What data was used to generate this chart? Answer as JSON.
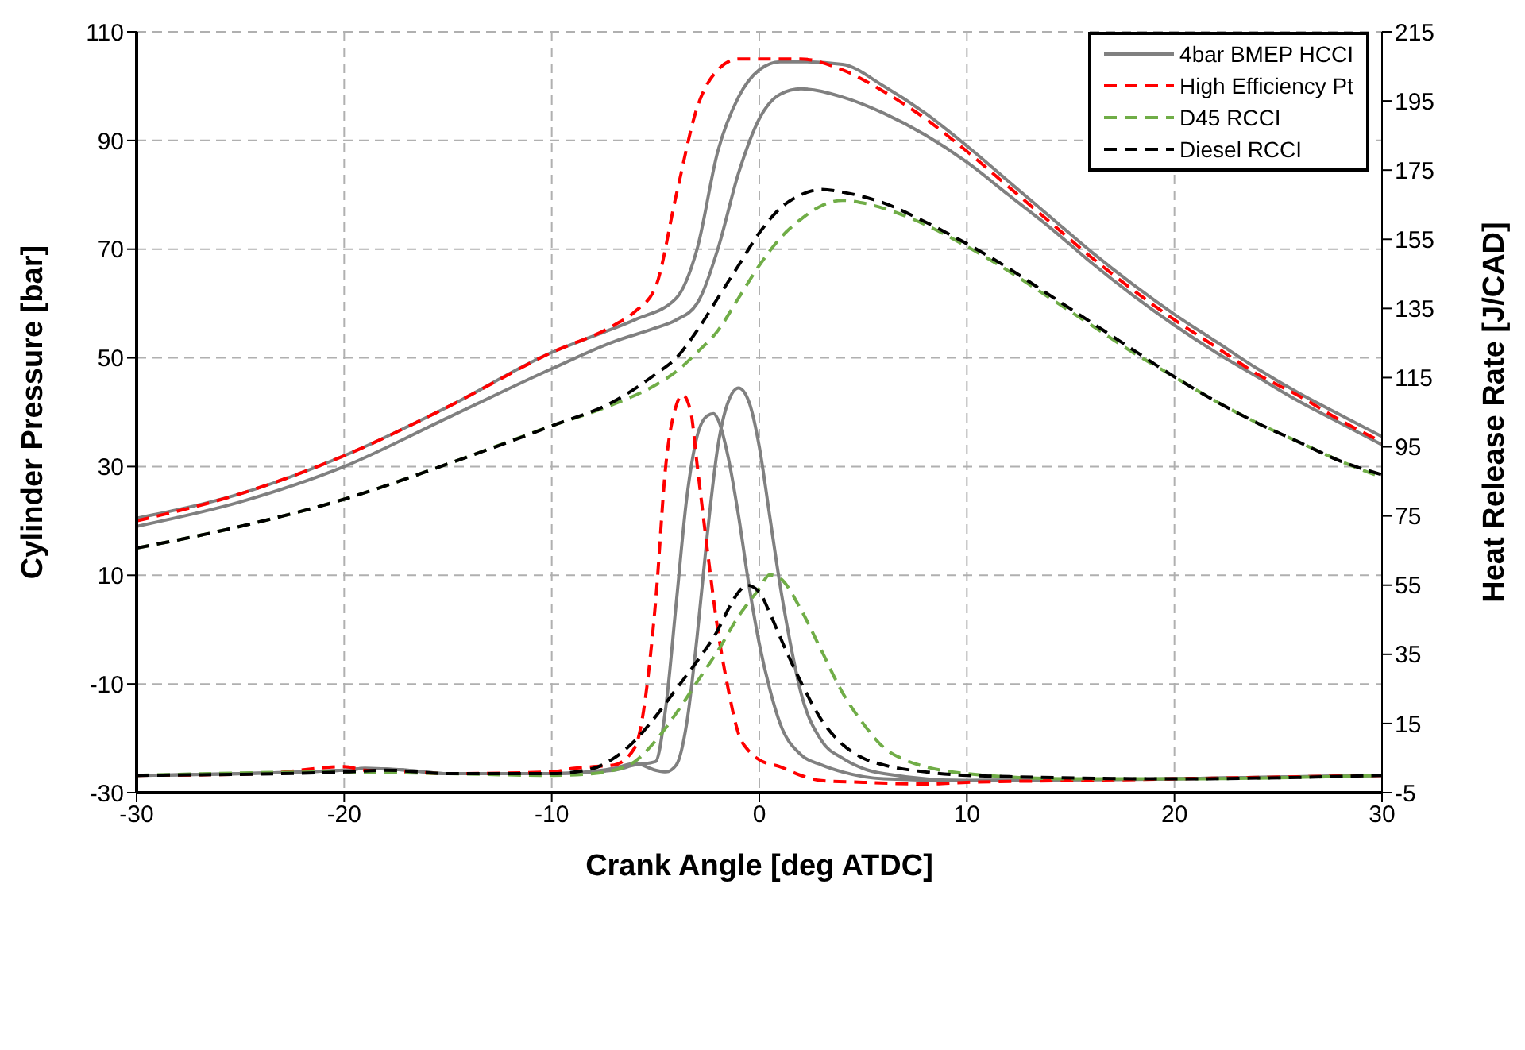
{
  "chart_data": {
    "type": "line",
    "xlabel": "Crank Angle [deg ATDC]",
    "ylabel": "Cylinder Pressure [bar]",
    "y2label": "Heat Release Rate [J/CAD]",
    "xlim": [
      -30,
      30
    ],
    "xticks": [
      -30,
      -20,
      -10,
      0,
      10,
      20,
      30
    ],
    "ylim": [
      -30,
      110
    ],
    "yticks": [
      -30,
      -10,
      10,
      30,
      50,
      70,
      90,
      110
    ],
    "y2lim": [
      -5,
      215
    ],
    "y2ticks": [
      -5,
      15,
      35,
      55,
      75,
      95,
      115,
      135,
      155,
      175,
      195,
      215
    ],
    "grid": true,
    "legend": "top right",
    "marker": "none",
    "series": [
      {
        "name": "4bar BMEP HCCI",
        "color": "#808080",
        "line_style": "solid",
        "x": [
          -30,
          -25,
          -20,
          -15,
          -10,
          -8,
          -6,
          -4,
          -3,
          -2,
          -1,
          0,
          1,
          2,
          4,
          6,
          8,
          10,
          12,
          14,
          16,
          18,
          20,
          22,
          24,
          26,
          28,
          30
        ],
        "values": [
          20.5,
          25,
          32,
          41,
          51,
          54,
          57,
          61,
          70,
          88,
          98,
          103,
          104.5,
          104.5,
          104,
          100,
          95,
          89,
          82.5,
          76,
          69.5,
          63.5,
          58,
          53,
          48,
          43.5,
          39.5,
          35.5
        ]
      },
      {
        "color": "#808080",
        "line_style": "solid",
        "x": [
          -30,
          -25,
          -20,
          -15,
          -10,
          -7,
          -5,
          -4,
          -3,
          -2,
          -1,
          0,
          1,
          2,
          4,
          6,
          8,
          10,
          12,
          14,
          16,
          18,
          20,
          22,
          24,
          26,
          28,
          30
        ],
        "values": [
          19,
          23.5,
          30,
          39,
          48,
          53,
          55.5,
          57,
          60,
          70,
          84,
          94,
          98.5,
          99.5,
          98,
          95,
          91,
          86,
          80,
          74,
          67.5,
          61.5,
          56,
          51,
          46.5,
          42,
          38,
          34
        ]
      },
      {
        "name": "High Efficiency Pt",
        "color": "#ff0000",
        "line_style": "dashed",
        "x": [
          -30,
          -25,
          -20,
          -15,
          -10,
          -7,
          -6,
          -5,
          -4,
          -3,
          -2,
          -1,
          0,
          2,
          4,
          6,
          8,
          10,
          12,
          14,
          16,
          18,
          20,
          22,
          24,
          26,
          28,
          30
        ],
        "values": [
          20,
          25,
          32,
          41,
          51,
          56,
          58.5,
          63,
          80,
          96,
          103,
          105,
          105,
          105,
          103,
          99,
          94,
          88,
          81.5,
          75,
          68.5,
          62.5,
          57,
          52,
          47,
          43,
          38.5,
          34.5
        ]
      },
      {
        "name": "D45 RCCI",
        "color": "#70ad47",
        "line_style": "dashed",
        "x": [
          -30,
          -25,
          -20,
          -15,
          -10,
          -7,
          -5,
          -4,
          -3,
          -2,
          -1,
          0,
          1,
          2,
          3,
          4,
          5,
          6,
          8,
          10,
          12,
          14,
          16,
          18,
          20,
          22,
          24,
          26,
          28,
          30
        ],
        "values": [
          15,
          19,
          24,
          30.5,
          37.5,
          41.5,
          45,
          47.5,
          51,
          55,
          61,
          67,
          72,
          75.5,
          78,
          79,
          78.5,
          77.5,
          74.5,
          70.5,
          66,
          61,
          56,
          51,
          46.5,
          42,
          38,
          34.5,
          31,
          28
        ]
      },
      {
        "name": "Diesel RCCI",
        "color": "#000000",
        "line_style": "dashed",
        "x": [
          -30,
          -25,
          -20,
          -15,
          -10,
          -7,
          -5,
          -4,
          -3,
          -2,
          -1,
          0,
          1,
          2,
          3,
          4,
          6,
          8,
          10,
          12,
          14,
          16,
          18,
          20,
          22,
          24,
          26,
          28,
          30
        ],
        "values": [
          15,
          19,
          24,
          30.5,
          37.5,
          42,
          47,
          50,
          55,
          61,
          67,
          73,
          77.5,
          80,
          81,
          80.5,
          78.5,
          75,
          71,
          66.5,
          61.5,
          56.5,
          51.5,
          46.5,
          42,
          38,
          34.5,
          31,
          28.5
        ]
      },
      {
        "color": "#808080",
        "line_style": "solid",
        "axis": "y2",
        "x": [
          -30,
          -20,
          -19,
          -17,
          -15,
          -10,
          -7,
          -6,
          -5,
          -4.5,
          -4,
          -3.5,
          -3,
          -2.5,
          -2.2,
          -2,
          -1.5,
          -1,
          -0.5,
          0,
          0.5,
          1,
          2,
          3,
          4,
          6,
          10,
          20,
          30
        ],
        "values": [
          0,
          1.5,
          2,
          1.5,
          0.5,
          0.5,
          1.5,
          3,
          4,
          20,
          50,
          80,
          98,
          104,
          104.6,
          103,
          92,
          75,
          55,
          38,
          25,
          15,
          6,
          3,
          1,
          -1,
          -1.5,
          -1,
          0
        ]
      },
      {
        "color": "#808080",
        "line_style": "solid",
        "axis": "y2",
        "x": [
          -30,
          -20,
          -19,
          -17,
          -15,
          -10,
          -7,
          -6,
          -5,
          -4.5,
          -4,
          -3.5,
          -3,
          -2.5,
          -2,
          -1.5,
          -1,
          -0.5,
          0,
          0.5,
          1,
          1.5,
          2,
          3,
          4,
          5,
          6,
          10,
          20,
          30
        ],
        "values": [
          0,
          1.5,
          2,
          1.5,
          0.5,
          0.5,
          2,
          3.5,
          1.5,
          1,
          3,
          15,
          40,
          70,
          95,
          108,
          112,
          108,
          95,
          75,
          55,
          38,
          24,
          10,
          5,
          2,
          0.5,
          -1.5,
          -1,
          0
        ]
      },
      {
        "color": "#ff0000",
        "line_style": "dashed",
        "axis": "y2",
        "x": [
          -30,
          -24,
          -20,
          -19,
          -17,
          -15,
          -10,
          -9,
          -8,
          -7,
          -6,
          -5,
          -4.5,
          -4,
          -3.7,
          -3.3,
          -3,
          -2.5,
          -2,
          -1.5,
          -1,
          -0.5,
          0,
          1,
          2,
          3,
          5,
          8,
          10,
          15,
          20,
          30
        ],
        "values": [
          0,
          0.5,
          2.5,
          1.5,
          1,
          0.5,
          1,
          2,
          2.5,
          3,
          8,
          50,
          90,
          107,
          110,
          105,
          90,
          65,
          42,
          25,
          12,
          7,
          4.5,
          2.5,
          0,
          -1.5,
          -2,
          -2.5,
          -2,
          -1.5,
          -1,
          0
        ]
      },
      {
        "color": "#70ad47",
        "line_style": "dashed",
        "axis": "y2",
        "x": [
          -30,
          -20,
          -15,
          -10,
          -8,
          -7,
          -6,
          -5,
          -4,
          -3,
          -2,
          -1,
          0,
          0.5,
          1,
          2,
          3,
          4,
          5,
          6,
          7,
          8,
          10,
          15,
          20,
          30
        ],
        "values": [
          0,
          1,
          0.5,
          0,
          0.5,
          1.5,
          4,
          10,
          18,
          27,
          36,
          46,
          54,
          58,
          57,
          48,
          36,
          24,
          15,
          8,
          4.5,
          2.5,
          0.5,
          -1,
          -1,
          0
        ]
      },
      {
        "color": "#000000",
        "line_style": "dashed",
        "axis": "y2",
        "x": [
          -30,
          -20,
          -18,
          -15,
          -10,
          -8,
          -7,
          -6,
          -5,
          -4,
          -3,
          -2,
          -1.5,
          -1,
          -0.6,
          0,
          0.5,
          1,
          2,
          3,
          4,
          5,
          6,
          8,
          10,
          20,
          30
        ],
        "values": [
          0,
          1,
          1.5,
          0.5,
          0.5,
          2,
          5,
          10,
          17,
          25,
          33,
          42,
          48,
          53,
          55,
          53,
          47,
          40,
          27,
          16,
          9,
          5,
          3,
          1,
          0,
          -1,
          0
        ]
      }
    ]
  }
}
